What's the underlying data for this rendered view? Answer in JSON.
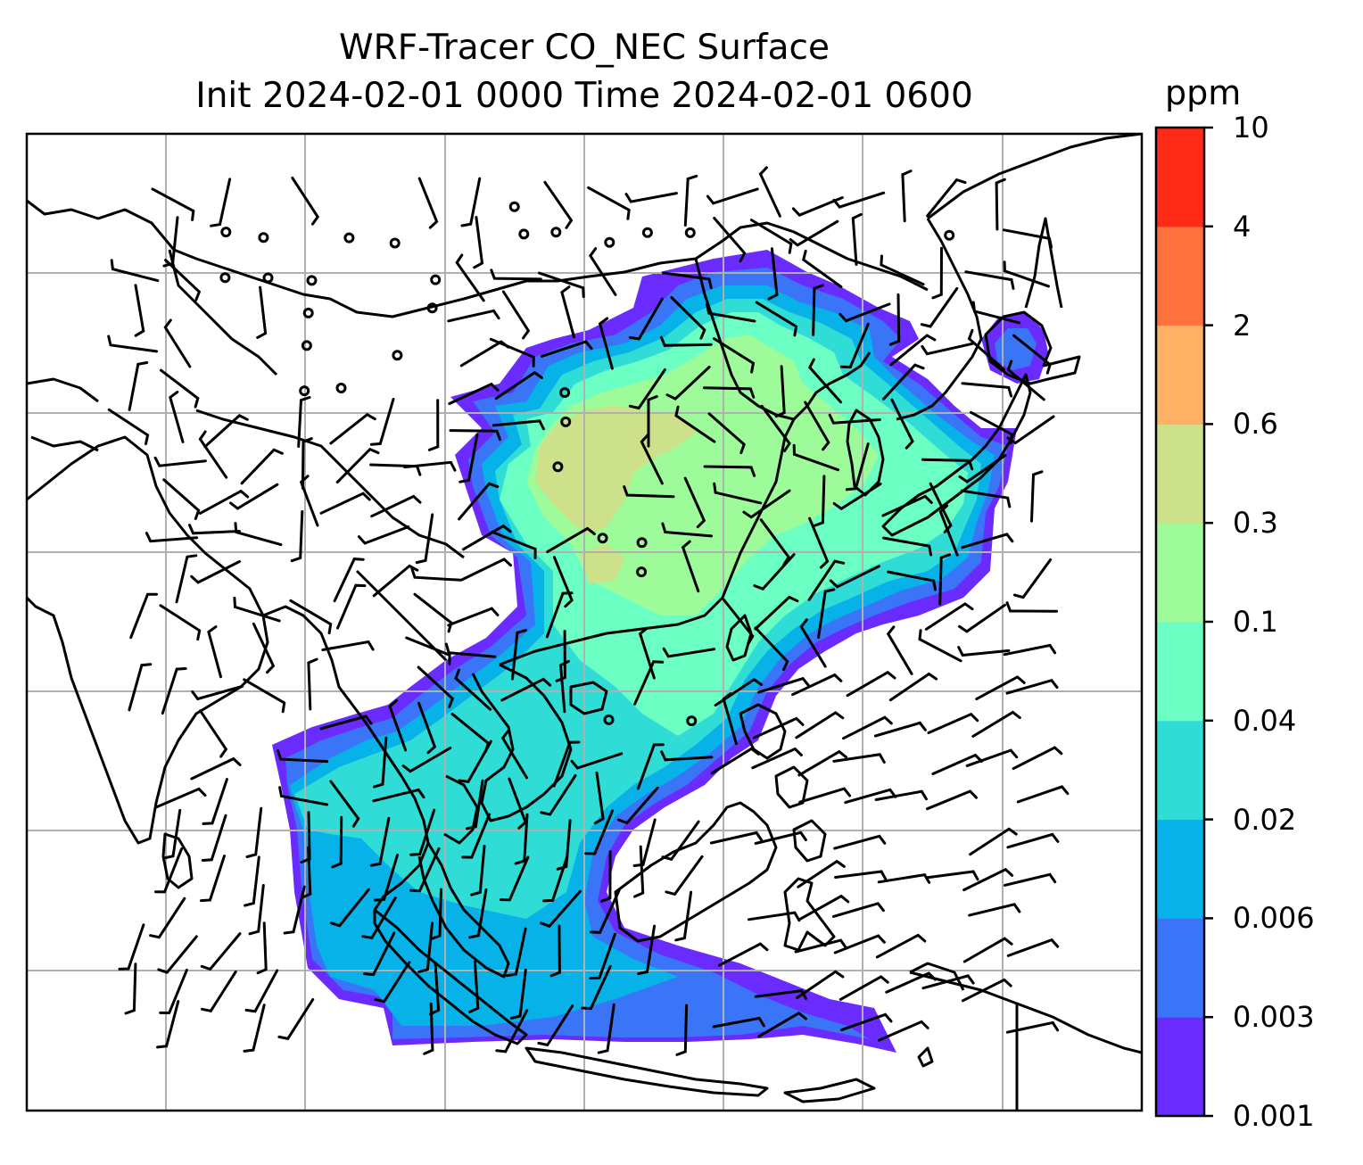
{
  "title": {
    "line1": "WRF-Tracer CO_NEC Surface",
    "line2": "Init 2024-02-01 0000 Time 2024-02-01 0600"
  },
  "colorbar": {
    "unit": "ppm",
    "ticks": [
      "0.001",
      "0.003",
      "0.006",
      "0.02",
      "0.04",
      "0.1",
      "0.3",
      "0.6",
      "2",
      "4",
      "10"
    ],
    "colors": [
      "#6a2bff",
      "#3a74f7",
      "#06b2e8",
      "#2fdcd6",
      "#6bffc4",
      "#9dfb9a",
      "#cde08a",
      "#feb065",
      "#ff713d",
      "#ff2b18"
    ]
  },
  "map": {
    "layers": [
      "coastlines",
      "country-borders",
      "gridlines",
      "co-tracer-filled-contours",
      "wind-barbs",
      "calm-circles"
    ],
    "gridline_color": "#b0b0b0"
  }
}
